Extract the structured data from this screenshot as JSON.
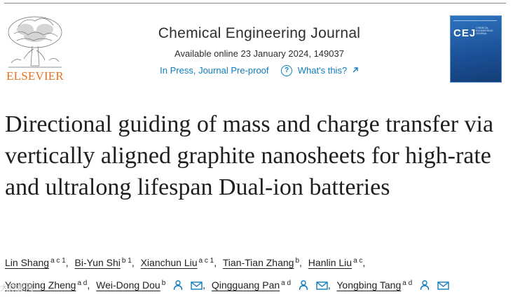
{
  "publisher": {
    "logo_text": "ELSEVIER"
  },
  "journal": {
    "title": "Chemical Engineering Journal",
    "availability": "Available online 23 January 2024, 149037",
    "status_link": "In Press, Journal Pre-proof",
    "help_link": "What's this?",
    "cover": {
      "title": "CEJ",
      "subtitle": "CHEMICAL ENGINEERING JOURNAL"
    }
  },
  "article": {
    "title": "Directional guiding of mass and charge transfer via vertically aligned graphite nanosheets for high-rate and ultralong lifespan Dual-ion batteries"
  },
  "authors": [
    {
      "name": "Lin Shang",
      "affiliations": "a c 1"
    },
    {
      "name": "Bi-Yun Shi",
      "affiliations": "b 1"
    },
    {
      "name": "Xianchun Liu",
      "affiliations": "a c 1"
    },
    {
      "name": "Tian-Tian Zhang",
      "affiliations": "b"
    },
    {
      "name": "Hanlin Liu",
      "affiliations": "a c"
    },
    {
      "name": "Yongping Zheng",
      "affiliations": "a d"
    },
    {
      "name": "Wei-Dong Dou",
      "affiliations": "b"
    },
    {
      "name": "Qingguang Pan",
      "affiliations": "a d"
    },
    {
      "name": "Yongbing Tang",
      "affiliations": "a d"
    }
  ],
  "watermark": "大数据网",
  "colors": {
    "link": "#0c7dbb",
    "elsevier_orange": "#e9711c",
    "cover_blue": "#1d5fa6"
  },
  "icons": [
    "help-circle-icon",
    "external-arrow-icon",
    "person-icon",
    "envelope-icon"
  ]
}
